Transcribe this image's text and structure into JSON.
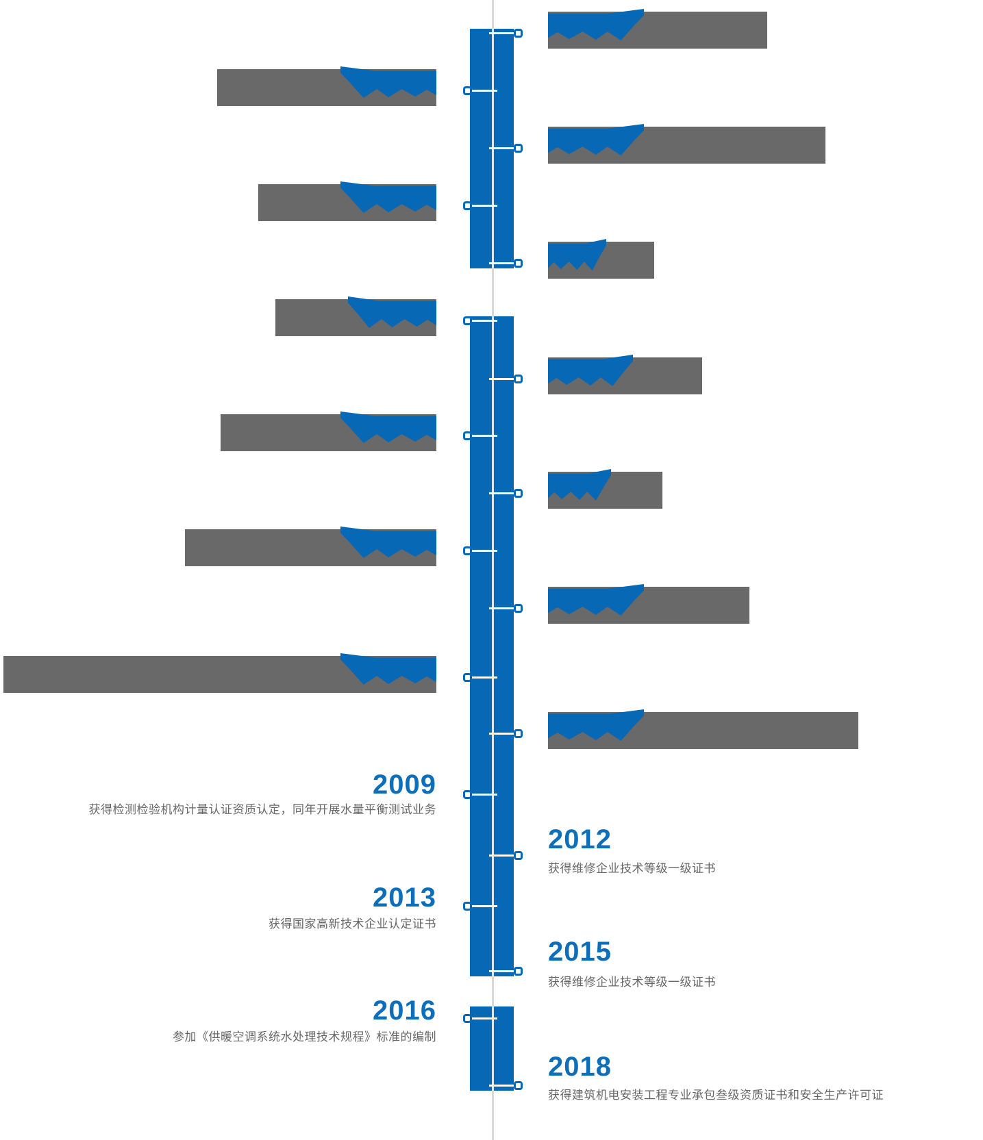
{
  "timeline": {
    "title": "company-history-timeline",
    "colors": {
      "bar_blue": "#0768b5",
      "year_blue": "#0d6eba",
      "block_gray": "#696969",
      "description_gray": "#676767",
      "axis_line_gray": "#d8d8d8"
    },
    "entries": [
      {
        "covered": true
      },
      {
        "covered": true
      },
      {
        "covered": true
      },
      {
        "covered": true
      },
      {
        "covered": true
      },
      {
        "covered": true
      },
      {
        "covered": true
      },
      {
        "covered": true
      },
      {
        "covered": true
      },
      {
        "covered": true
      },
      {
        "covered": true
      },
      {
        "covered": true
      },
      {
        "covered": true
      },
      {
        "covered": false,
        "year": "2009",
        "description": "获得检测检验机构计量认证资质认定，同年开展水量平衡测试业务"
      },
      {
        "covered": false,
        "year": "2012",
        "description": "获得维修企业技术等级一级证书"
      },
      {
        "covered": false,
        "year": "2013",
        "description": "获得国家高新技术企业认定证书"
      },
      {
        "covered": false,
        "year": "2015",
        "description": "获得维修企业技术等级一级证书"
      },
      {
        "covered": false,
        "year": "2016",
        "description": "参加《供暖空调系统水处理技术规程》标准的编制"
      },
      {
        "covered": false,
        "year": "2018",
        "description": "获得建筑机电安装工程专业承包叁级资质证书和安全生产许可证"
      }
    ]
  }
}
